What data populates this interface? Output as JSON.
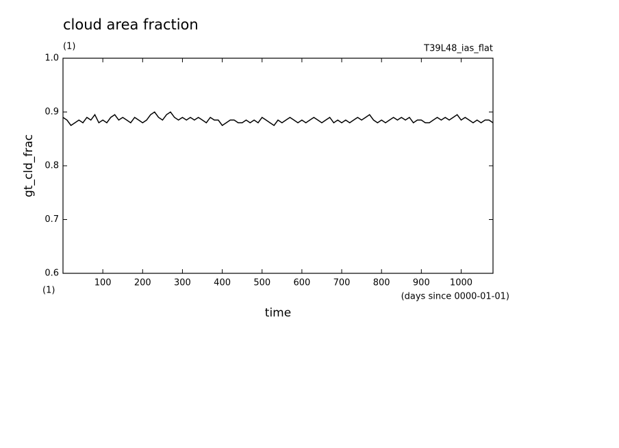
{
  "chart_data": {
    "type": "line",
    "title": "cloud area fraction",
    "unit": "(1)",
    "run_label": "T39L48_ias_flat",
    "y_label": "gt_cld_frac",
    "x_label": "time",
    "x_unit": "(days since 0000-01-01)",
    "x_axis_unit": "(1)",
    "xlim": [
      0,
      1080
    ],
    "ylim": [
      0.6,
      1.0
    ],
    "xticks": [
      100,
      200,
      300,
      400,
      500,
      600,
      700,
      800,
      900,
      1000
    ],
    "yticks": [
      0.6,
      0.7,
      0.8,
      0.9,
      {
        "value": 1,
        "label": "1.0"
      }
    ],
    "color": "#000000",
    "x": [
      0,
      10,
      20,
      30,
      40,
      50,
      60,
      70,
      80,
      90,
      100,
      110,
      120,
      130,
      140,
      150,
      160,
      170,
      180,
      190,
      200,
      210,
      220,
      230,
      240,
      250,
      260,
      270,
      280,
      290,
      300,
      310,
      320,
      330,
      340,
      350,
      360,
      370,
      380,
      390,
      400,
      410,
      420,
      430,
      440,
      450,
      460,
      470,
      480,
      490,
      500,
      510,
      520,
      530,
      540,
      550,
      560,
      570,
      580,
      590,
      600,
      610,
      620,
      630,
      640,
      650,
      660,
      670,
      680,
      690,
      700,
      710,
      720,
      730,
      740,
      750,
      760,
      770,
      780,
      790,
      800,
      810,
      820,
      830,
      840,
      850,
      860,
      870,
      880,
      890,
      900,
      910,
      920,
      930,
      940,
      950,
      960,
      970,
      980,
      990,
      1000,
      1010,
      1020,
      1030,
      1040,
      1050,
      1060,
      1070,
      1080
    ],
    "values": [
      0.89,
      0.885,
      0.875,
      0.88,
      0.885,
      0.88,
      0.89,
      0.885,
      0.895,
      0.88,
      0.885,
      0.88,
      0.89,
      0.895,
      0.885,
      0.89,
      0.885,
      0.88,
      0.89,
      0.885,
      0.88,
      0.885,
      0.895,
      0.9,
      0.89,
      0.885,
      0.895,
      0.9,
      0.89,
      0.885,
      0.89,
      0.885,
      0.89,
      0.885,
      0.89,
      0.885,
      0.88,
      0.89,
      0.885,
      0.885,
      0.875,
      0.88,
      0.885,
      0.885,
      0.88,
      0.88,
      0.885,
      0.88,
      0.885,
      0.88,
      0.89,
      0.885,
      0.88,
      0.875,
      0.885,
      0.88,
      0.885,
      0.89,
      0.885,
      0.88,
      0.885,
      0.88,
      0.885,
      0.89,
      0.885,
      0.88,
      0.885,
      0.89,
      0.88,
      0.885,
      0.88,
      0.885,
      0.88,
      0.885,
      0.89,
      0.885,
      0.89,
      0.895,
      0.885,
      0.88,
      0.885,
      0.88,
      0.885,
      0.89,
      0.885,
      0.89,
      0.885,
      0.89,
      0.88,
      0.885,
      0.885,
      0.88,
      0.88,
      0.885,
      0.89,
      0.885,
      0.89,
      0.885,
      0.89,
      0.895,
      0.885,
      0.89,
      0.885,
      0.88,
      0.885,
      0.88,
      0.885,
      0.885,
      0.88
    ]
  }
}
